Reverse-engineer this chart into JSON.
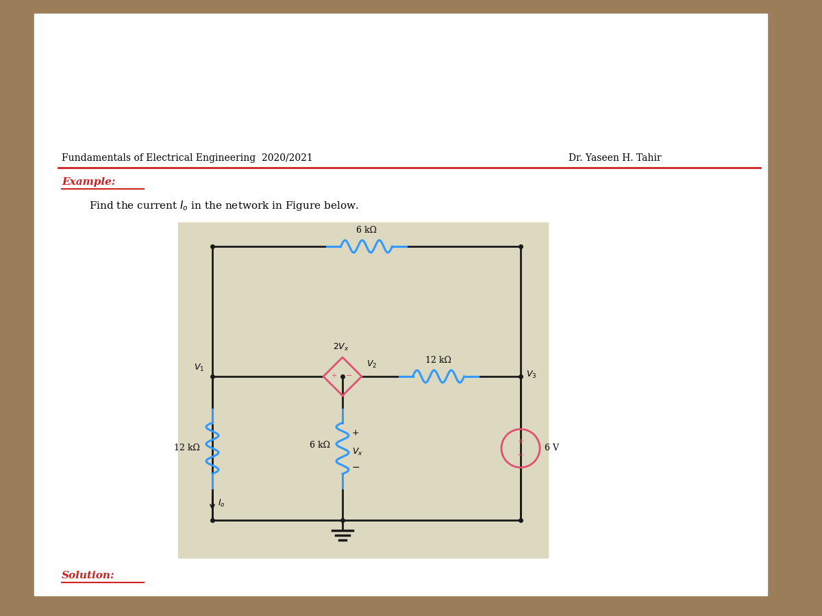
{
  "title_left": "Fundamentals of Electrical Engineering  2020/2021",
  "title_right": "Dr. Yaseen H. Tahir",
  "example_label": "Example:",
  "solution_label": "Solution:",
  "circuit_bg": "#ddd8c0",
  "line_color": "#1a1a1a",
  "blue_color": "#3399ff",
  "pink_color": "#e05070",
  "header_line_color": "#cc2222",
  "example_color": "#cc2222",
  "solution_color": "#cc2222",
  "bg_color": "#9b7d5a"
}
